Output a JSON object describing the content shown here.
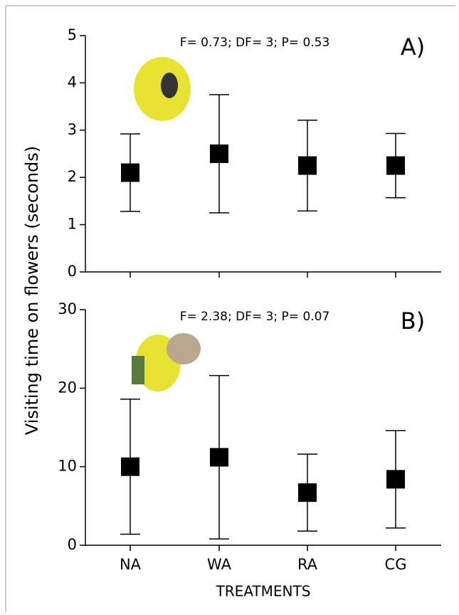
{
  "ylabel": "Visiting time on flowers (seconds)",
  "xlabel": "TREATMENTS",
  "chart_data": [
    {
      "type": "errorbar",
      "panel_label": "A)",
      "annotation": "F= 0.73; DF= 3; P= 0.53",
      "values": [
        2.1,
        2.5,
        2.25,
        2.25
      ],
      "errors": [
        0.82,
        1.25,
        0.96,
        0.68
      ],
      "color": "#000000",
      "ylim": [
        0,
        5
      ],
      "yticks": [
        0,
        1,
        2,
        3,
        4,
        5
      ]
    },
    {
      "type": "errorbar",
      "panel_label": "B)",
      "annotation": "F= 2.38; DF= 3; P= 0.07",
      "categories": [
        "NA",
        "WA",
        "RA",
        "CG"
      ],
      "values": [
        10,
        11.2,
        6.7,
        8.4
      ],
      "errors": [
        8.6,
        10.4,
        4.9,
        6.2
      ],
      "color": "#000000",
      "ylim": [
        0,
        30
      ],
      "yticks": [
        0,
        10,
        20,
        30
      ]
    }
  ]
}
